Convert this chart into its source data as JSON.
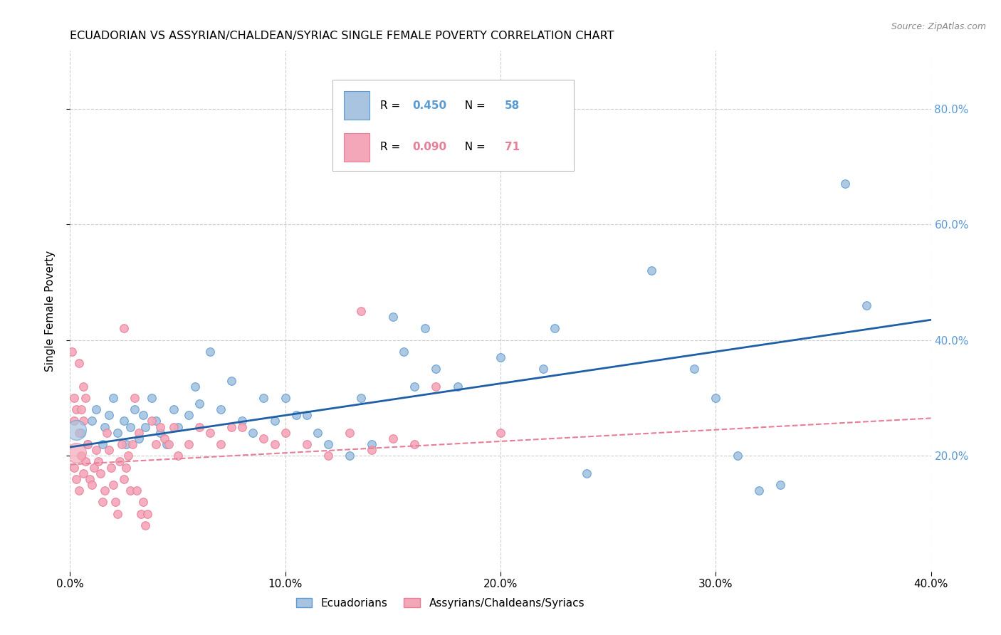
{
  "title": "ECUADORIAN VS ASSYRIAN/CHALDEAN/SYRIAC SINGLE FEMALE POVERTY CORRELATION CHART",
  "source": "Source: ZipAtlas.com",
  "ylabel": "Single Female Poverty",
  "yticks": [
    "80.0%",
    "60.0%",
    "40.0%",
    "20.0%"
  ],
  "ytick_vals": [
    0.8,
    0.6,
    0.4,
    0.2
  ],
  "xlim": [
    0.0,
    0.4
  ],
  "ylim": [
    0.0,
    0.9
  ],
  "xtick_vals": [
    0.0,
    0.1,
    0.2,
    0.3,
    0.4
  ],
  "xtick_labels": [
    "0.0%",
    "10.0%",
    "20.0%",
    "30.0%",
    "40.0%"
  ],
  "legend_entries": [
    {
      "label": "Ecuadorians",
      "R": "0.450",
      "N": "58"
    },
    {
      "label": "Assyrians/Chaldeans/Syriacs",
      "R": "0.090",
      "N": "71"
    }
  ],
  "blue_scatter": [
    [
      0.005,
      0.24
    ],
    [
      0.008,
      0.22
    ],
    [
      0.01,
      0.26
    ],
    [
      0.012,
      0.28
    ],
    [
      0.015,
      0.22
    ],
    [
      0.016,
      0.25
    ],
    [
      0.018,
      0.27
    ],
    [
      0.02,
      0.3
    ],
    [
      0.022,
      0.24
    ],
    [
      0.025,
      0.26
    ],
    [
      0.026,
      0.22
    ],
    [
      0.028,
      0.25
    ],
    [
      0.03,
      0.28
    ],
    [
      0.032,
      0.23
    ],
    [
      0.034,
      0.27
    ],
    [
      0.035,
      0.25
    ],
    [
      0.038,
      0.3
    ],
    [
      0.04,
      0.26
    ],
    [
      0.042,
      0.24
    ],
    [
      0.045,
      0.22
    ],
    [
      0.048,
      0.28
    ],
    [
      0.05,
      0.25
    ],
    [
      0.055,
      0.27
    ],
    [
      0.058,
      0.32
    ],
    [
      0.06,
      0.29
    ],
    [
      0.065,
      0.38
    ],
    [
      0.07,
      0.28
    ],
    [
      0.075,
      0.33
    ],
    [
      0.08,
      0.26
    ],
    [
      0.085,
      0.24
    ],
    [
      0.09,
      0.3
    ],
    [
      0.095,
      0.26
    ],
    [
      0.1,
      0.3
    ],
    [
      0.105,
      0.27
    ],
    [
      0.11,
      0.27
    ],
    [
      0.115,
      0.24
    ],
    [
      0.12,
      0.22
    ],
    [
      0.13,
      0.2
    ],
    [
      0.135,
      0.3
    ],
    [
      0.14,
      0.22
    ],
    [
      0.15,
      0.44
    ],
    [
      0.155,
      0.38
    ],
    [
      0.16,
      0.32
    ],
    [
      0.165,
      0.42
    ],
    [
      0.17,
      0.35
    ],
    [
      0.18,
      0.32
    ],
    [
      0.2,
      0.37
    ],
    [
      0.22,
      0.35
    ],
    [
      0.225,
      0.42
    ],
    [
      0.24,
      0.17
    ],
    [
      0.27,
      0.52
    ],
    [
      0.29,
      0.35
    ],
    [
      0.3,
      0.3
    ],
    [
      0.31,
      0.2
    ],
    [
      0.32,
      0.14
    ],
    [
      0.33,
      0.15
    ],
    [
      0.37,
      0.46
    ],
    [
      0.36,
      0.67
    ]
  ],
  "pink_scatter": [
    [
      0.002,
      0.18
    ],
    [
      0.003,
      0.16
    ],
    [
      0.004,
      0.14
    ],
    [
      0.005,
      0.2
    ],
    [
      0.006,
      0.17
    ],
    [
      0.007,
      0.19
    ],
    [
      0.008,
      0.22
    ],
    [
      0.009,
      0.16
    ],
    [
      0.01,
      0.15
    ],
    [
      0.011,
      0.18
    ],
    [
      0.012,
      0.21
    ],
    [
      0.013,
      0.19
    ],
    [
      0.014,
      0.17
    ],
    [
      0.015,
      0.12
    ],
    [
      0.016,
      0.14
    ],
    [
      0.017,
      0.24
    ],
    [
      0.018,
      0.21
    ],
    [
      0.019,
      0.18
    ],
    [
      0.02,
      0.15
    ],
    [
      0.021,
      0.12
    ],
    [
      0.022,
      0.1
    ],
    [
      0.023,
      0.19
    ],
    [
      0.024,
      0.22
    ],
    [
      0.025,
      0.16
    ],
    [
      0.026,
      0.18
    ],
    [
      0.027,
      0.2
    ],
    [
      0.028,
      0.14
    ],
    [
      0.029,
      0.22
    ],
    [
      0.03,
      0.3
    ],
    [
      0.031,
      0.14
    ],
    [
      0.032,
      0.24
    ],
    [
      0.033,
      0.1
    ],
    [
      0.034,
      0.12
    ],
    [
      0.035,
      0.08
    ],
    [
      0.036,
      0.1
    ],
    [
      0.038,
      0.26
    ],
    [
      0.04,
      0.22
    ],
    [
      0.042,
      0.25
    ],
    [
      0.044,
      0.23
    ],
    [
      0.046,
      0.22
    ],
    [
      0.048,
      0.25
    ],
    [
      0.05,
      0.2
    ],
    [
      0.055,
      0.22
    ],
    [
      0.06,
      0.25
    ],
    [
      0.065,
      0.24
    ],
    [
      0.07,
      0.22
    ],
    [
      0.075,
      0.25
    ],
    [
      0.08,
      0.25
    ],
    [
      0.09,
      0.23
    ],
    [
      0.095,
      0.22
    ],
    [
      0.1,
      0.24
    ],
    [
      0.11,
      0.22
    ],
    [
      0.12,
      0.2
    ],
    [
      0.13,
      0.24
    ],
    [
      0.135,
      0.45
    ],
    [
      0.14,
      0.21
    ],
    [
      0.15,
      0.23
    ],
    [
      0.16,
      0.22
    ],
    [
      0.17,
      0.32
    ],
    [
      0.2,
      0.24
    ],
    [
      0.025,
      0.42
    ],
    [
      0.004,
      0.36
    ],
    [
      0.006,
      0.32
    ],
    [
      0.007,
      0.3
    ],
    [
      0.001,
      0.38
    ],
    [
      0.002,
      0.3
    ],
    [
      0.003,
      0.28
    ],
    [
      0.002,
      0.26
    ],
    [
      0.004,
      0.24
    ],
    [
      0.005,
      0.28
    ],
    [
      0.006,
      0.26
    ]
  ],
  "blue_large_pts": [
    [
      0.003,
      0.245
    ]
  ],
  "pink_large_pts": [
    [
      0.003,
      0.205
    ]
  ],
  "blue_line": {
    "x0": 0.0,
    "y0": 0.215,
    "x1": 0.4,
    "y1": 0.435
  },
  "pink_line": {
    "x0": 0.0,
    "y0": 0.185,
    "x1": 0.4,
    "y1": 0.265
  },
  "blue_color": "#5b9bd5",
  "pink_color": "#e87d96",
  "blue_scatter_color": "#a8c4e0",
  "pink_scatter_color": "#f4a7b9",
  "blue_line_color": "#1f5fa6",
  "background_color": "#ffffff",
  "grid_color": "#cccccc"
}
